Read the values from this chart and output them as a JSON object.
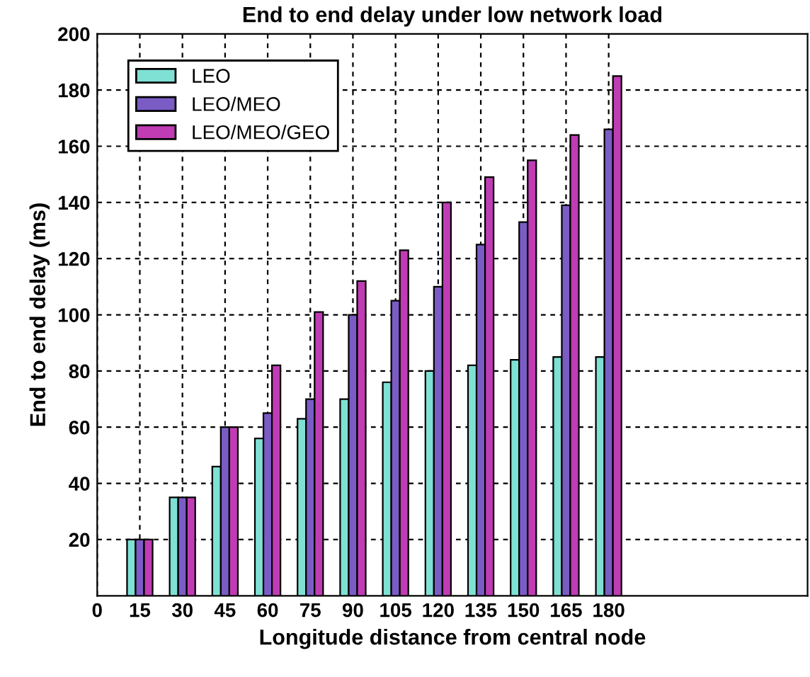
{
  "chart_data": {
    "type": "bar",
    "title": "End to end delay under low network load",
    "xlabel": "Longitude distance from central node",
    "ylabel": "End to end delay (ms)",
    "x": [
      15,
      30,
      45,
      60,
      75,
      90,
      105,
      120,
      135,
      150,
      165,
      180
    ],
    "series": [
      {
        "name": "LEO",
        "color": "#7fe0d4",
        "values": [
          20,
          35,
          46,
          56,
          63,
          70,
          76,
          80,
          82,
          84,
          85,
          85
        ]
      },
      {
        "name": "LEO/MEO",
        "color": "#7b5cc4",
        "values": [
          20,
          35,
          60,
          65,
          70,
          100,
          105,
          110,
          125,
          133,
          139,
          166
        ]
      },
      {
        "name": "LEO/MEO/GEO",
        "color": "#c03cb4",
        "values": [
          20,
          35,
          60,
          82,
          101,
          112,
          123,
          140,
          149,
          155,
          164,
          185
        ]
      }
    ],
    "xlim": [
      0,
      250
    ],
    "xticks": [
      0,
      15,
      30,
      45,
      60,
      75,
      90,
      105,
      120,
      135,
      150,
      165,
      180
    ],
    "ylim": [
      0,
      200
    ],
    "yticks": [
      20,
      40,
      60,
      80,
      100,
      120,
      140,
      160,
      180,
      200
    ],
    "grid": true,
    "legend": "top left"
  }
}
